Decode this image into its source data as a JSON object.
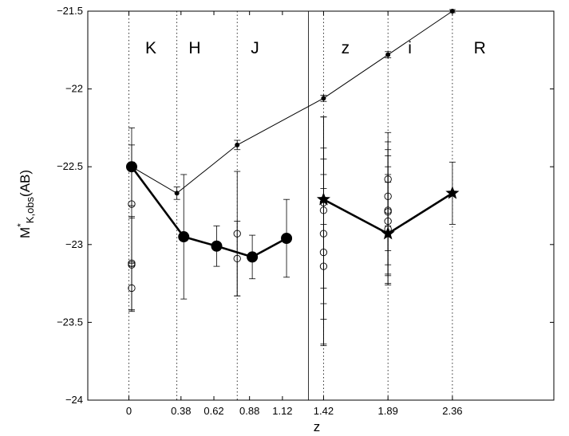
{
  "chart_data": {
    "type": "line",
    "xlabel": "z",
    "ylabel_main": "M",
    "ylabel_sup": "*",
    "ylabel_sub": "K,obs",
    "ylabel_suffix": "(AB)",
    "xlim": [
      -0.3,
      3.1
    ],
    "ylim": [
      -24,
      -21.5
    ],
    "x_ticks": [
      0,
      0.38,
      0.62,
      0.88,
      1.12,
      1.42,
      1.89,
      2.36
    ],
    "x_tick_labels": [
      "0",
      "0.38",
      "0.62",
      "0.88",
      "1.12",
      "1.42",
      "1.89",
      "2.36"
    ],
    "y_ticks": [
      -24,
      -23.5,
      -23,
      -22.5,
      -22,
      -21.5
    ],
    "y_tick_labels": [
      "−24",
      "−23.5",
      "−23",
      "−22.5",
      "−22",
      "−21.5"
    ],
    "grid": false,
    "dotted_verticals": [
      0,
      0.35,
      0.79,
      1.42,
      1.89,
      2.36
    ],
    "solid_vertical": 1.31,
    "band_labels": [
      {
        "label": "K",
        "x": 0.16
      },
      {
        "label": "H",
        "x": 0.48
      },
      {
        "label": "J",
        "x": 0.92
      },
      {
        "label": "z",
        "x": 1.58
      },
      {
        "label": "i",
        "x": 2.05
      },
      {
        "label": "R",
        "x": 2.56
      }
    ],
    "band_label_y": -21.73,
    "series": [
      {
        "marker": "small-dot",
        "line": "thin",
        "x": [
          0.02,
          0.35,
          0.79,
          1.42,
          1.89,
          2.36
        ],
        "y": [
          -22.5,
          -22.67,
          -22.36,
          -22.06,
          -21.78,
          -21.5
        ],
        "err": [
          0.03,
          0.04,
          0.03,
          0.02,
          0.02,
          0.01
        ]
      },
      {
        "marker": "large-dot",
        "line": "thick",
        "x": [
          0.02,
          0.4,
          0.64,
          0.9,
          1.15
        ],
        "y": [
          -22.5,
          -22.95,
          -23.01,
          -23.08,
          -22.96
        ],
        "err": [
          0.25,
          0.4,
          0.13,
          0.14,
          0.25
        ]
      },
      {
        "marker": "star",
        "line": "thick",
        "x": [
          1.42,
          1.89,
          2.36
        ],
        "y": [
          -22.71,
          -22.93,
          -22.67
        ],
        "err": [
          0.16,
          0.33,
          0.2
        ]
      },
      {
        "marker": "open-circle",
        "line": "none",
        "x": [
          0.02,
          0.02,
          0.02,
          0.02,
          0.79,
          0.79,
          1.42,
          1.42,
          1.42,
          1.42,
          1.42,
          1.89,
          1.89,
          1.89,
          1.89,
          1.89,
          1.89
        ],
        "y": [
          -22.74,
          -23.12,
          -23.13,
          -23.28,
          -22.93,
          -23.09,
          -22.73,
          -22.78,
          -22.93,
          -23.05,
          -23.14,
          -22.58,
          -22.69,
          -22.78,
          -22.79,
          -22.85,
          -22.9
        ],
        "err": [
          0.38,
          0.3,
          0.3,
          0.14,
          0.4,
          0.24,
          0.55,
          0.6,
          0.55,
          0.6,
          0.5,
          0.3,
          0.35,
          0.35,
          0.4,
          0.35,
          0.35
        ]
      }
    ]
  }
}
